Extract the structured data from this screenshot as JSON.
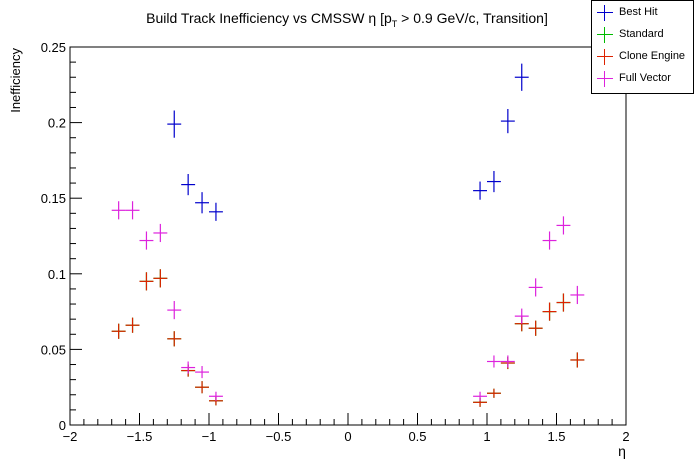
{
  "chart_data": {
    "type": "scatter",
    "title": "Build Track Inefficiency vs CMSSW η [p",
    "title_sub": "T",
    "title_rest": " > 0.9 GeV/c, Transition]",
    "xlabel": "η",
    "ylabel": "Inefficiency",
    "xlim": [
      -2,
      2
    ],
    "ylim": [
      0,
      0.25
    ],
    "x_ticks": [
      "−2",
      "−1.5",
      "−1",
      "−0.5",
      "0",
      "0.5",
      "1",
      "1.5",
      "2"
    ],
    "x_tick_values": [
      -2,
      -1.5,
      -1,
      -0.5,
      0,
      0.5,
      1,
      1.5,
      2
    ],
    "y_ticks": [
      "0",
      "0.05",
      "0.1",
      "0.15",
      "0.2",
      "0.25"
    ],
    "y_tick_values": [
      0,
      0.05,
      0.1,
      0.15,
      0.2,
      0.25
    ],
    "legend_position": "top-right",
    "series": [
      {
        "name": "Best Hit",
        "color": "#0000cc",
        "points": [
          {
            "x": -1.25,
            "y": 0.199,
            "err": 0.009
          },
          {
            "x": -1.15,
            "y": 0.159,
            "err": 0.007
          },
          {
            "x": -1.05,
            "y": 0.147,
            "err": 0.007
          },
          {
            "x": -0.95,
            "y": 0.141,
            "err": 0.006
          },
          {
            "x": 0.95,
            "y": 0.155,
            "err": 0.006
          },
          {
            "x": 1.05,
            "y": 0.161,
            "err": 0.007
          },
          {
            "x": 1.15,
            "y": 0.201,
            "err": 0.008
          },
          {
            "x": 1.25,
            "y": 0.23,
            "err": 0.009
          }
        ]
      },
      {
        "name": "Standard",
        "color": "#00bb00",
        "points": [
          {
            "x": -1.65,
            "y": 0.062,
            "err": 0.005
          },
          {
            "x": -1.55,
            "y": 0.066,
            "err": 0.005
          },
          {
            "x": -1.45,
            "y": 0.095,
            "err": 0.006
          },
          {
            "x": -1.35,
            "y": 0.097,
            "err": 0.006
          },
          {
            "x": -1.25,
            "y": 0.057,
            "err": 0.005
          },
          {
            "x": -1.15,
            "y": 0.036,
            "err": 0.004
          },
          {
            "x": -1.05,
            "y": 0.025,
            "err": 0.004
          },
          {
            "x": -0.95,
            "y": 0.016,
            "err": 0.003
          },
          {
            "x": 0.95,
            "y": 0.015,
            "err": 0.003
          },
          {
            "x": 1.05,
            "y": 0.021,
            "err": 0.003
          },
          {
            "x": 1.15,
            "y": 0.041,
            "err": 0.004
          },
          {
            "x": 1.25,
            "y": 0.067,
            "err": 0.005
          },
          {
            "x": 1.35,
            "y": 0.064,
            "err": 0.005
          },
          {
            "x": 1.45,
            "y": 0.075,
            "err": 0.006
          },
          {
            "x": 1.55,
            "y": 0.081,
            "err": 0.006
          },
          {
            "x": 1.65,
            "y": 0.043,
            "err": 0.005
          }
        ]
      },
      {
        "name": "Clone Engine",
        "color": "#dd2200",
        "points": [
          {
            "x": -1.65,
            "y": 0.062,
            "err": 0.005
          },
          {
            "x": -1.55,
            "y": 0.066,
            "err": 0.005
          },
          {
            "x": -1.45,
            "y": 0.095,
            "err": 0.006
          },
          {
            "x": -1.35,
            "y": 0.097,
            "err": 0.006
          },
          {
            "x": -1.25,
            "y": 0.057,
            "err": 0.005
          },
          {
            "x": -1.15,
            "y": 0.036,
            "err": 0.004
          },
          {
            "x": -1.05,
            "y": 0.025,
            "err": 0.004
          },
          {
            "x": -0.95,
            "y": 0.016,
            "err": 0.003
          },
          {
            "x": 0.95,
            "y": 0.015,
            "err": 0.003
          },
          {
            "x": 1.05,
            "y": 0.021,
            "err": 0.003
          },
          {
            "x": 1.15,
            "y": 0.041,
            "err": 0.004
          },
          {
            "x": 1.25,
            "y": 0.067,
            "err": 0.005
          },
          {
            "x": 1.35,
            "y": 0.064,
            "err": 0.005
          },
          {
            "x": 1.45,
            "y": 0.075,
            "err": 0.006
          },
          {
            "x": 1.55,
            "y": 0.081,
            "err": 0.006
          },
          {
            "x": 1.65,
            "y": 0.043,
            "err": 0.005
          }
        ]
      },
      {
        "name": "Full Vector",
        "color": "#dd22dd",
        "points": [
          {
            "x": -1.65,
            "y": 0.142,
            "err": 0.006
          },
          {
            "x": -1.55,
            "y": 0.142,
            "err": 0.006
          },
          {
            "x": -1.45,
            "y": 0.122,
            "err": 0.006
          },
          {
            "x": -1.35,
            "y": 0.127,
            "err": 0.006
          },
          {
            "x": -1.25,
            "y": 0.076,
            "err": 0.006
          },
          {
            "x": -1.15,
            "y": 0.038,
            "err": 0.004
          },
          {
            "x": -1.05,
            "y": 0.035,
            "err": 0.004
          },
          {
            "x": -0.95,
            "y": 0.019,
            "err": 0.003
          },
          {
            "x": 0.95,
            "y": 0.019,
            "err": 0.003
          },
          {
            "x": 1.05,
            "y": 0.042,
            "err": 0.004
          },
          {
            "x": 1.15,
            "y": 0.042,
            "err": 0.004
          },
          {
            "x": 1.25,
            "y": 0.072,
            "err": 0.005
          },
          {
            "x": 1.35,
            "y": 0.091,
            "err": 0.006
          },
          {
            "x": 1.45,
            "y": 0.122,
            "err": 0.006
          },
          {
            "x": 1.55,
            "y": 0.132,
            "err": 0.006
          },
          {
            "x": 1.65,
            "y": 0.086,
            "err": 0.006
          }
        ]
      }
    ]
  }
}
